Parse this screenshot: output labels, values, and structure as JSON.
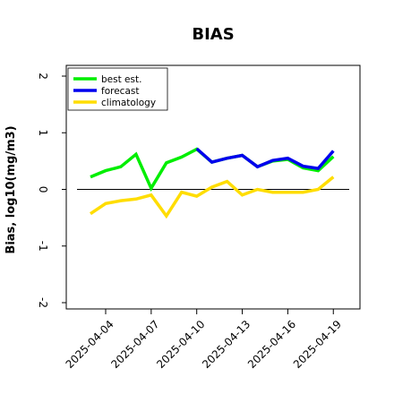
{
  "chart_data": {
    "type": "line",
    "title": "BIAS",
    "xlabel": "",
    "ylabel": "Bias, log10(mg/m3)",
    "ylim": [
      -2,
      2
    ],
    "yticks": [
      -2,
      -1,
      0,
      1,
      2
    ],
    "ytick_labels": [
      "-2",
      "-1",
      "0",
      "1",
      "2"
    ],
    "xticks": [
      "2025-04-04",
      "2025-04-07",
      "2025-04-10",
      "2025-04-13",
      "2025-04-16",
      "2025-04-19"
    ],
    "xtick_labels": [
      "2025-04-04",
      "2025-04-07",
      "2025-04-10",
      "2025-04-13",
      "2025-04-16",
      "2025-04-19"
    ],
    "highlighted_xtick": "2025-04-10",
    "highlight_color": "#008000",
    "zero_line": true,
    "grid": false,
    "legend_position": "top-left",
    "series": [
      {
        "name": "best est.",
        "color": "#00ee00",
        "x": [
          "2025-04-03",
          "2025-04-04",
          "2025-04-05",
          "2025-04-06",
          "2025-04-07",
          "2025-04-08",
          "2025-04-09",
          "2025-04-10",
          "2025-04-11",
          "2025-04-12",
          "2025-04-13",
          "2025-04-14",
          "2025-04-15",
          "2025-04-16",
          "2025-04-17",
          "2025-04-18",
          "2025-04-19"
        ],
        "y": [
          0.22,
          0.33,
          0.4,
          0.62,
          0.02,
          0.47,
          0.57,
          0.71,
          0.48,
          0.55,
          0.6,
          0.4,
          0.5,
          0.53,
          0.38,
          0.33,
          0.58
        ]
      },
      {
        "name": "forecast",
        "color": "#0000ee",
        "x": [
          "2025-04-10",
          "2025-04-11",
          "2025-04-12",
          "2025-04-13",
          "2025-04-14",
          "2025-04-15",
          "2025-04-16",
          "2025-04-17",
          "2025-04-18",
          "2025-04-19"
        ],
        "y": [
          0.72,
          0.48,
          0.55,
          0.6,
          0.4,
          0.51,
          0.55,
          0.41,
          0.37,
          0.68
        ]
      },
      {
        "name": "climatology",
        "color": "#ffdd00",
        "x": [
          "2025-04-03",
          "2025-04-04",
          "2025-04-05",
          "2025-04-06",
          "2025-04-07",
          "2025-04-08",
          "2025-04-09",
          "2025-04-10",
          "2025-04-11",
          "2025-04-12",
          "2025-04-13",
          "2025-04-14",
          "2025-04-15",
          "2025-04-16",
          "2025-04-17",
          "2025-04-18",
          "2025-04-19"
        ],
        "y": [
          -0.43,
          -0.25,
          -0.2,
          -0.17,
          -0.1,
          -0.47,
          -0.05,
          -0.12,
          0.04,
          0.14,
          -0.1,
          0.0,
          -0.05,
          -0.05,
          -0.05,
          0.0,
          0.22
        ]
      }
    ]
  }
}
